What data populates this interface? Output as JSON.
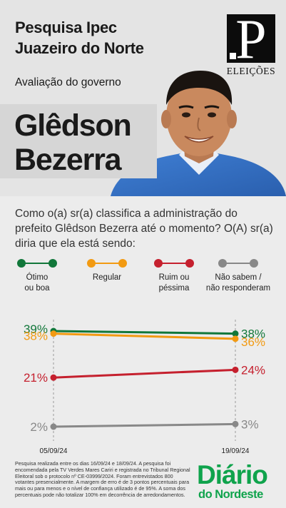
{
  "header": {
    "title_line1": "Pesquisa Ipec",
    "title_line2": "Juazeiro do Norte",
    "subtitle": "Avaliação do governo",
    "candidate_line1": "Glêdson",
    "candidate_line2": "Bezerra",
    "logo_letter": "P",
    "logo_caption": "ELEIÇÕES"
  },
  "question": "Como o(a) sr(a) classifica a administração do prefeito Glêdson Bezerra  até o momento? O(A) sr(a) diria que ela está sendo:",
  "chart_data": {
    "type": "line",
    "x": [
      "05/09/24",
      "19/09/24"
    ],
    "series": [
      {
        "name": "Ótimo ou boa",
        "values": [
          39,
          38
        ],
        "color": "#11773a"
      },
      {
        "name": "Regular",
        "values": [
          38,
          36
        ],
        "color": "#f29a12"
      },
      {
        "name": "Ruim ou péssima",
        "values": [
          21,
          24
        ],
        "color": "#c5202e"
      },
      {
        "name": "Não sabem / não responderam",
        "values": [
          2,
          3
        ],
        "color": "#888888"
      }
    ],
    "value_suffix": "%"
  },
  "legend": [
    {
      "line1": "Ótimo",
      "line2": "ou boa"
    },
    {
      "line1": "Regular",
      "line2": ""
    },
    {
      "line1": "Ruim ou",
      "line2": "péssima"
    },
    {
      "line1": "Não sabem /",
      "line2": "não responderam"
    }
  ],
  "footer": {
    "methodology": "Pesquisa realizada entre os dias 16/09/24 e 18/09/24. A pesquisa foi encomendada pela TV Verdes Mares Cariri e registrada no Tribunal Regional Eleitoral  sob o protocolo nº CE-03999/2024. Foram entrevistados 800 votantes presencialmente. A margem de erro é de 3 pontos percentuais para mais ou para menos e o nível de confiança utilizado é de 95%. A soma dos percentuais pode não totalizar 100% em decorrência de arredondamentos.",
    "brand_line1": "Diário",
    "brand_line2": "do Nordeste"
  }
}
